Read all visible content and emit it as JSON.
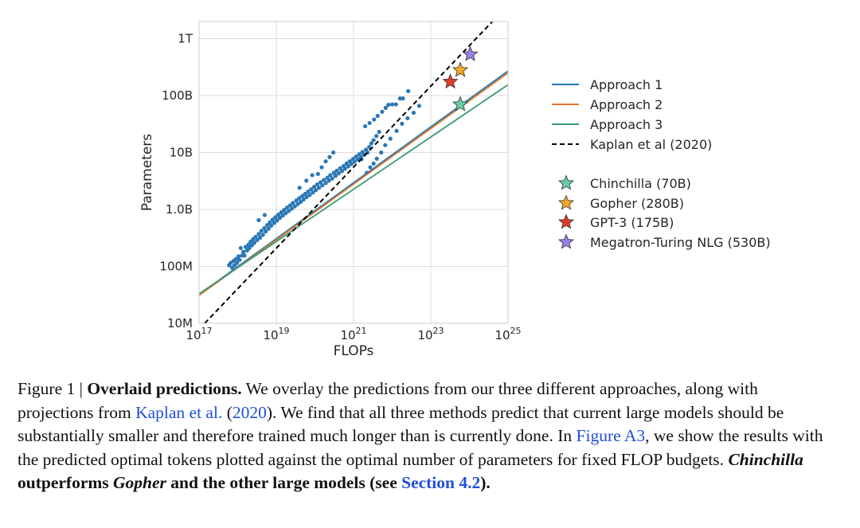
{
  "chart_data": {
    "type": "scatter",
    "xlabel": "FLOPs",
    "ylabel": "Parameters",
    "xscale": "log",
    "yscale": "log",
    "xlim": [
      1e+17,
      1e+25
    ],
    "ylim": [
      10000000.0,
      2000000000000.0
    ],
    "grid": true,
    "xticks": [
      {
        "value": 1e+17,
        "base": "10",
        "exp": "17"
      },
      {
        "value": 1e+19,
        "base": "10",
        "exp": "19"
      },
      {
        "value": 1e+21,
        "base": "10",
        "exp": "21"
      },
      {
        "value": 1e+23,
        "base": "10",
        "exp": "23"
      },
      {
        "value": 1e+25,
        "base": "10",
        "exp": "25"
      }
    ],
    "yticks": [
      {
        "value": 10000000.0,
        "label": "10M"
      },
      {
        "value": 100000000.0,
        "label": "100M"
      },
      {
        "value": 1000000000.0,
        "label": "1.0B"
      },
      {
        "value": 10000000000.0,
        "label": "10B"
      },
      {
        "value": 100000000000.0,
        "label": "100B"
      },
      {
        "value": 1000000000000.0,
        "label": "1T"
      }
    ],
    "legend_position": "right",
    "lines": [
      {
        "name": "Approach 1",
        "color": "#1f77b4",
        "style": "solid",
        "x": [
          1e+17,
          1e+25
        ],
        "y": [
          32000000.0,
          270000000000.0
        ]
      },
      {
        "name": "Approach 2",
        "color": "#e0772a",
        "style": "solid",
        "x": [
          1e+17,
          1e+25
        ],
        "y": [
          31000000.0,
          250000000000.0
        ]
      },
      {
        "name": "Approach 3",
        "color": "#3a9a73",
        "style": "solid",
        "x": [
          1e+17,
          1e+25
        ],
        "y": [
          33000000.0,
          155000000000.0
        ]
      },
      {
        "name": "Kaplan et al (2020)",
        "color": "#000000",
        "style": "dashed",
        "x": [
          1.4e+17,
          6e+24
        ],
        "y": [
          10000000.0,
          2700000000000.0
        ]
      }
    ],
    "models": [
      {
        "name": "Chinchilla (70B)",
        "flops": 5.8e+23,
        "params": 70000000000.0,
        "color": "#66cdaa"
      },
      {
        "name": "Gopher (280B)",
        "flops": 5.8e+23,
        "params": 280000000000.0,
        "color": "#f5a623"
      },
      {
        "name": "GPT-3 (175B)",
        "flops": 3.2e+23,
        "params": 175000000000.0,
        "color": "#e03b24"
      },
      {
        "name": "Megatron-Turing NLG (530B)",
        "flops": 1.05e+24,
        "params": 530000000000.0,
        "color": "#9b7fe8"
      }
    ],
    "scatter": {
      "color": "#2c78b5",
      "points": [
        [
          6e+17,
          105000000.0
        ],
        [
          6.6e+17,
          115000000.0
        ],
        [
          7.2e+17,
          95000000.0
        ],
        [
          7.8e+17,
          125000000.0
        ],
        [
          8.3e+17,
          105000000.0
        ],
        [
          9e+17,
          135000000.0
        ],
        [
          9.6e+17,
          115000000.0
        ],
        [
          1.05e+18,
          150000000.0
        ],
        [
          1.12e+18,
          130000000.0
        ],
        [
          1.2e+18,
          210000000.0
        ],
        [
          1.3e+18,
          155000000.0
        ],
        [
          1.4e+18,
          180000000.0
        ],
        [
          1.5e+18,
          155000000.0
        ],
        [
          1.6e+18,
          220000000.0
        ],
        [
          1.75e+18,
          190000000.0
        ],
        [
          1.9e+18,
          240000000.0
        ],
        [
          2e+18,
          210000000.0
        ],
        [
          2.15e+18,
          270000000.0
        ],
        [
          2.35e+18,
          235000000.0
        ],
        [
          2.5e+18,
          300000000.0
        ],
        [
          2.7e+18,
          260000000.0
        ],
        [
          2.9e+18,
          330000000.0
        ],
        [
          3.2e+18,
          290000000.0
        ],
        [
          3.5e+18,
          370000000.0
        ],
        [
          3.8e+18,
          320000000.0
        ],
        [
          4.1e+18,
          420000000.0
        ],
        [
          4.5e+18,
          360000000.0
        ],
        [
          4.9e+18,
          470000000.0
        ],
        [
          5.3e+18,
          410000000.0
        ],
        [
          5.8e+18,
          530000000.0
        ],
        [
          6.3e+18,
          460000000.0
        ],
        [
          6.8e+18,
          590000000.0
        ],
        [
          7.4e+18,
          520000000.0
        ],
        [
          8e+18,
          660000000.0
        ],
        [
          8.8e+18,
          580000000.0
        ],
        [
          9.5e+18,
          730000000.0
        ],
        [
          1.04e+19,
          640000000.0
        ],
        [
          1.13e+19,
          810000000.0
        ],
        [
          1.23e+19,
          710000000.0
        ],
        [
          1.35e+19,
          890000000.0
        ],
        [
          1.47e+19,
          780000000.0
        ],
        [
          1.6e+19,
          980000000.0
        ],
        [
          1.75e+19,
          860000000.0
        ],
        [
          1.9e+19,
          1080000000.0
        ],
        [
          2.1e+19,
          940000000.0
        ],
        [
          2.3e+19,
          1180000000.0
        ],
        [
          2.5e+19,
          1030000000.0
        ],
        [
          2.7e+19,
          1300000000.0
        ],
        [
          3e+19,
          1130000000.0
        ],
        [
          3.3e+19,
          1430000000.0
        ],
        [
          3.6e+19,
          1240000000.0
        ],
        [
          3.9e+19,
          1570000000.0
        ],
        [
          4.3e+19,
          1360000000.0
        ],
        [
          4.7e+19,
          1720000000.0
        ],
        [
          5.1e+19,
          1500000000.0
        ],
        [
          5.6e+19,
          1880000000.0
        ],
        [
          6.1e+19,
          1650000000.0
        ],
        [
          6.7e+19,
          2070000000.0
        ],
        [
          7.3e+19,
          1800000000.0
        ],
        [
          8e+19,
          2270000000.0
        ],
        [
          8.8e+19,
          1980000000.0
        ],
        [
          9.6e+19,
          2500000000.0
        ],
        [
          1.05e+20,
          2180000000.0
        ],
        [
          1.15e+20,
          2750000000.0
        ],
        [
          1.27e+20,
          2400000000.0
        ],
        [
          1.4e+20,
          3000000000.0
        ],
        [
          1.55e+20,
          2650000000.0
        ],
        [
          1.7e+20,
          3300000000.0
        ],
        [
          1.9e+20,
          2900000000.0
        ],
        [
          2.1e+20,
          3600000000.0
        ],
        [
          2.3e+20,
          3200000000.0
        ],
        [
          2.5e+20,
          4000000000.0
        ],
        [
          2.8e+20,
          3500000000.0
        ],
        [
          3.1e+20,
          4400000000.0
        ],
        [
          3.4e+20,
          3900000000.0
        ],
        [
          3.7e+20,
          4800000000.0
        ],
        [
          4.1e+20,
          4300000000.0
        ],
        [
          4.5e+20,
          5300000000.0
        ],
        [
          5e+20,
          4700000000.0
        ],
        [
          5.5e+20,
          5800000000.0
        ],
        [
          6e+20,
          5200000000.0
        ],
        [
          6.6e+20,
          6400000000.0
        ],
        [
          7.3e+20,
          5700000000.0
        ],
        [
          8e+20,
          7000000000.0
        ],
        [
          8.8e+20,
          6300000000.0
        ],
        [
          9.7e+20,
          7700000000.0
        ],
        [
          1.06e+21,
          6900000000.0
        ],
        [
          1.17e+21,
          8500000000.0
        ],
        [
          1.28e+21,
          7600000000.0
        ],
        [
          1.41e+21,
          9300000000.0
        ],
        [
          1.55e+21,
          8300000000.0
        ],
        [
          1.7e+21,
          10200000000.0
        ],
        [
          1.87e+21,
          9200000000.0
        ],
        [
          2.1e+21,
          11200000000.0
        ],
        [
          2.3e+21,
          10000000000.0
        ],
        [
          2.55e+21,
          12500000000.0
        ],
        [
          2.9e+21,
          14500000000.0
        ],
        [
          3.3e+21,
          16500000000.0
        ],
        [
          3.9e+21,
          19500000000.0
        ],
        [
          4.6e+21,
          23000000000.0
        ],
        [
          1.2e+20,
          4200000000.0
        ],
        [
          1.5e+20,
          5500000000.0
        ],
        [
          1.9e+20,
          7000000000.0
        ],
        [
          2.4e+20,
          8300000000.0
        ],
        [
          3e+20,
          10000000000.0
        ],
        [
          4e+19,
          2400000000.0
        ],
        [
          6e+19,
          3200000000.0
        ],
        [
          8.5e+19,
          4000000000.0
        ],
        [
          3.5e+18,
          650000000.0
        ],
        [
          5e+18,
          800000000.0
        ],
        [
          2e+21,
          29000000000.0
        ],
        [
          2.6e+21,
          33000000000.0
        ],
        [
          3.4e+21,
          38000000000.0
        ],
        [
          4.2e+21,
          44000000000.0
        ],
        [
          5.5e+21,
          52000000000.0
        ],
        [
          6.8e+21,
          61000000000.0
        ],
        [
          8e+21,
          69000000000.0
        ],
        [
          1e+22,
          70000000000.0
        ],
        [
          1.25e+22,
          70000000000.0
        ],
        [
          1.6e+22,
          89000000000.0
        ],
        [
          1.9e+22,
          89000000000.0
        ],
        [
          2.6e+22,
          120000000000.0
        ],
        [
          2.2e+21,
          4400000000.0
        ],
        [
          2.7e+21,
          5500000000.0
        ],
        [
          3.3e+21,
          6400000000.0
        ],
        [
          1.6e+21,
          7600000000.0
        ],
        [
          4e+21,
          7800000000.0
        ],
        [
          5.2e+21,
          10000000000.0
        ],
        [
          6.6e+21,
          13500000000.0
        ],
        [
          9e+21,
          17500000000.0
        ],
        [
          1.3e+22,
          24000000000.0
        ],
        [
          1.8e+22,
          32000000000.0
        ],
        [
          2.5e+22,
          40000000000.0
        ],
        [
          3.6e+22,
          50000000000.0
        ],
        [
          5e+22,
          66000000000.0
        ]
      ]
    }
  },
  "caption": {
    "fig_label": "Figure 1 | ",
    "title": "Overlaid predictions.",
    "s1": " We overlay the predictions from our three different approaches, along with projections from ",
    "ref_authors": "Kaplan et al.",
    "s2": " (",
    "ref_year": "2020",
    "s3": "). We find that all three methods predict that current large models should be substantially smaller and therefore trained much longer than is currently done. In ",
    "fig_ref": "Figure A3",
    "s4": ", we show the results with the predicted optimal tokens plotted against the optimal number of parameters for fixed FLOP budgets. ",
    "em1": "Chinchilla",
    "b1": " outperforms ",
    "em2": "Gopher",
    "b2": " and the other large models (see ",
    "section_ref": "Section 4.2",
    "b3": ")."
  }
}
